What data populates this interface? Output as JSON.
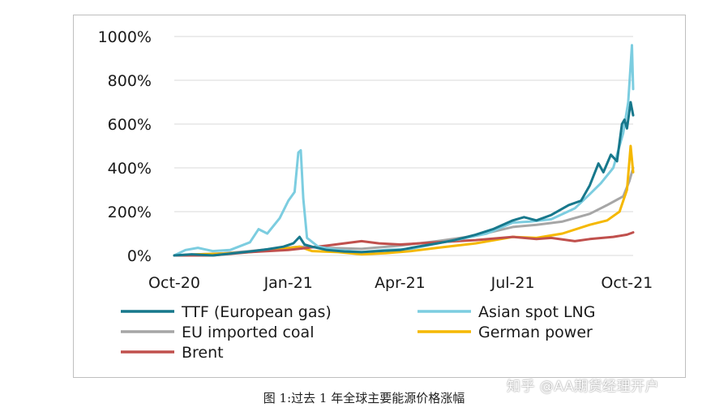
{
  "caption": "图 1:过去 1 年全球主要能源价格涨幅",
  "watermark": "知乎 @AA期货经理开户",
  "chart_data": {
    "type": "line",
    "y_ticks": [
      "0%",
      "200%",
      "400%",
      "600%",
      "800%",
      "1000%"
    ],
    "y_tick_values": [
      0,
      200,
      400,
      600,
      800,
      1000
    ],
    "x_ticks": [
      "Oct-20",
      "Jan-21",
      "Apr-21",
      "Jul-21",
      "Oct-21"
    ],
    "x_tick_values": [
      "2020-10-01",
      "2021-01-01",
      "2021-04-01",
      "2021-07-01",
      "2021-10-01"
    ],
    "xlim": [
      "2020-10-01",
      "2021-10-06"
    ],
    "ylim": [
      0,
      1000
    ],
    "grid": "horizontal",
    "legend_position": "bottom",
    "series": [
      {
        "name": "TTF (European gas)",
        "color": "#17788c",
        "points": [
          [
            "2020-10-01",
            0
          ],
          [
            "2020-10-15",
            5
          ],
          [
            "2020-11-01",
            0
          ],
          [
            "2020-11-15",
            8
          ],
          [
            "2020-12-01",
            18
          ],
          [
            "2020-12-15",
            28
          ],
          [
            "2020-12-28",
            40
          ],
          [
            "2021-01-05",
            55
          ],
          [
            "2021-01-10",
            85
          ],
          [
            "2021-01-14",
            50
          ],
          [
            "2021-01-20",
            40
          ],
          [
            "2021-02-01",
            25
          ],
          [
            "2021-02-15",
            18
          ],
          [
            "2021-03-01",
            15
          ],
          [
            "2021-03-15",
            20
          ],
          [
            "2021-04-01",
            25
          ],
          [
            "2021-04-15",
            40
          ],
          [
            "2021-05-01",
            55
          ],
          [
            "2021-05-15",
            70
          ],
          [
            "2021-06-01",
            95
          ],
          [
            "2021-06-15",
            120
          ],
          [
            "2021-07-01",
            160
          ],
          [
            "2021-07-10",
            175
          ],
          [
            "2021-07-20",
            160
          ],
          [
            "2021-08-01",
            185
          ],
          [
            "2021-08-15",
            230
          ],
          [
            "2021-08-25",
            250
          ],
          [
            "2021-09-01",
            320
          ],
          [
            "2021-09-08",
            420
          ],
          [
            "2021-09-12",
            380
          ],
          [
            "2021-09-18",
            460
          ],
          [
            "2021-09-23",
            430
          ],
          [
            "2021-09-27",
            600
          ],
          [
            "2021-09-29",
            620
          ],
          [
            "2021-10-01",
            580
          ],
          [
            "2021-10-04",
            700
          ],
          [
            "2021-10-06",
            640
          ]
        ]
      },
      {
        "name": "Asian spot LNG",
        "color": "#7ccde0",
        "points": [
          [
            "2020-10-01",
            0
          ],
          [
            "2020-10-10",
            25
          ],
          [
            "2020-10-20",
            35
          ],
          [
            "2020-11-01",
            20
          ],
          [
            "2020-11-15",
            25
          ],
          [
            "2020-12-01",
            60
          ],
          [
            "2020-12-08",
            120
          ],
          [
            "2020-12-15",
            100
          ],
          [
            "2020-12-25",
            170
          ],
          [
            "2021-01-01",
            250
          ],
          [
            "2021-01-06",
            290
          ],
          [
            "2021-01-09",
            470
          ],
          [
            "2021-01-11",
            480
          ],
          [
            "2021-01-13",
            260
          ],
          [
            "2021-01-16",
            80
          ],
          [
            "2021-01-25",
            40
          ],
          [
            "2021-02-10",
            25
          ],
          [
            "2021-03-01",
            15
          ],
          [
            "2021-03-20",
            25
          ],
          [
            "2021-04-10",
            30
          ],
          [
            "2021-05-01",
            55
          ],
          [
            "2021-05-20",
            75
          ],
          [
            "2021-06-10",
            100
          ],
          [
            "2021-07-01",
            150
          ],
          [
            "2021-07-15",
            155
          ],
          [
            "2021-08-01",
            165
          ],
          [
            "2021-08-20",
            215
          ],
          [
            "2021-09-01",
            280
          ],
          [
            "2021-09-10",
            330
          ],
          [
            "2021-09-20",
            400
          ],
          [
            "2021-09-28",
            560
          ],
          [
            "2021-10-02",
            700
          ],
          [
            "2021-10-05",
            960
          ],
          [
            "2021-10-06",
            760
          ]
        ]
      },
      {
        "name": "EU imported coal",
        "color": "#a6a6a6",
        "points": [
          [
            "2020-10-01",
            0
          ],
          [
            "2020-10-20",
            5
          ],
          [
            "2020-11-10",
            10
          ],
          [
            "2020-12-01",
            20
          ],
          [
            "2020-12-20",
            30
          ],
          [
            "2021-01-10",
            40
          ],
          [
            "2021-02-01",
            35
          ],
          [
            "2021-03-01",
            30
          ],
          [
            "2021-04-01",
            45
          ],
          [
            "2021-05-01",
            65
          ],
          [
            "2021-06-01",
            90
          ],
          [
            "2021-07-01",
            130
          ],
          [
            "2021-07-20",
            140
          ],
          [
            "2021-08-10",
            155
          ],
          [
            "2021-09-01",
            190
          ],
          [
            "2021-09-15",
            230
          ],
          [
            "2021-09-28",
            270
          ],
          [
            "2021-10-03",
            340
          ],
          [
            "2021-10-06",
            400
          ]
        ]
      },
      {
        "name": "German power",
        "color": "#f5b800",
        "points": [
          [
            "2020-10-01",
            0
          ],
          [
            "2020-10-20",
            5
          ],
          [
            "2020-11-10",
            8
          ],
          [
            "2020-12-01",
            15
          ],
          [
            "2020-12-20",
            25
          ],
          [
            "2021-01-10",
            40
          ],
          [
            "2021-01-20",
            20
          ],
          [
            "2021-02-10",
            15
          ],
          [
            "2021-03-01",
            5
          ],
          [
            "2021-03-20",
            10
          ],
          [
            "2021-04-10",
            20
          ],
          [
            "2021-05-01",
            35
          ],
          [
            "2021-06-01",
            55
          ],
          [
            "2021-07-01",
            85
          ],
          [
            "2021-07-20",
            80
          ],
          [
            "2021-08-10",
            100
          ],
          [
            "2021-09-01",
            140
          ],
          [
            "2021-09-15",
            160
          ],
          [
            "2021-09-25",
            200
          ],
          [
            "2021-10-01",
            300
          ],
          [
            "2021-10-04",
            500
          ],
          [
            "2021-10-06",
            380
          ]
        ]
      },
      {
        "name": "Brent",
        "color": "#c0504d",
        "points": [
          [
            "2020-10-01",
            0
          ],
          [
            "2020-11-01",
            0
          ],
          [
            "2020-12-01",
            15
          ],
          [
            "2021-01-01",
            25
          ],
          [
            "2021-02-01",
            45
          ],
          [
            "2021-03-01",
            65
          ],
          [
            "2021-03-15",
            55
          ],
          [
            "2021-04-01",
            50
          ],
          [
            "2021-05-01",
            60
          ],
          [
            "2021-06-01",
            70
          ],
          [
            "2021-07-01",
            85
          ],
          [
            "2021-07-20",
            75
          ],
          [
            "2021-08-01",
            80
          ],
          [
            "2021-08-20",
            65
          ],
          [
            "2021-09-01",
            75
          ],
          [
            "2021-09-20",
            85
          ],
          [
            "2021-10-01",
            95
          ],
          [
            "2021-10-06",
            105
          ]
        ]
      }
    ]
  }
}
